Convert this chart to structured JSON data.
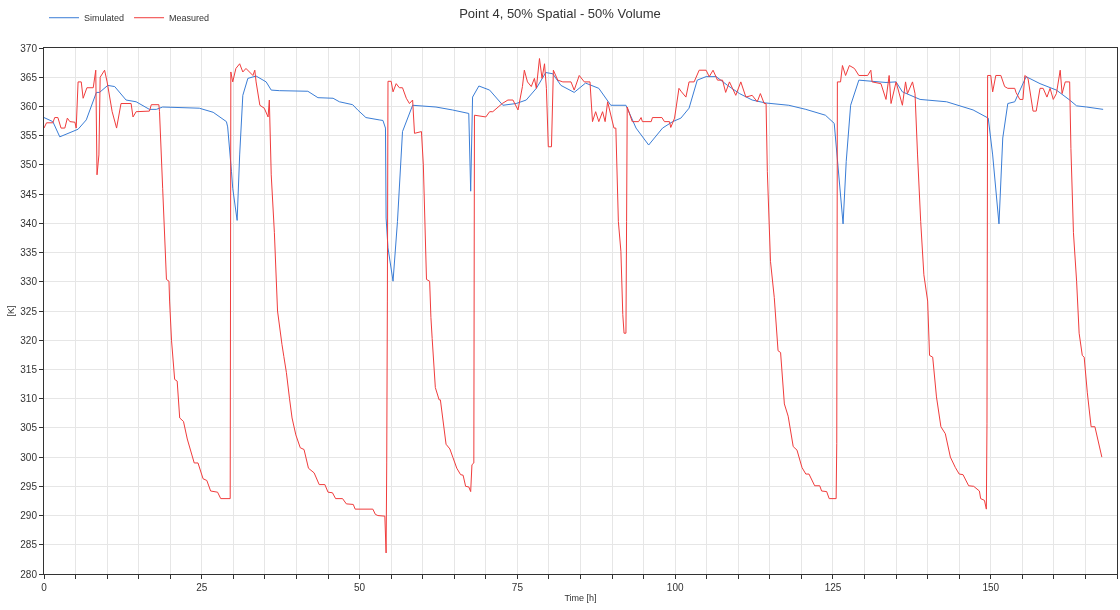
{
  "chart_data": {
    "type": "line",
    "title": "Point 4, 50% Spatial - 50% Volume",
    "xlabel": "Time [h]",
    "ylabel": "[K]",
    "xlim": [
      0,
      170
    ],
    "ylim": [
      280,
      370
    ],
    "xticks": [
      0,
      {
        "value": 5,
        "label": null
      },
      {
        "value": 10,
        "label": null
      },
      {
        "value": 15,
        "label": null
      },
      {
        "value": 20,
        "label": null
      },
      25,
      {
        "value": 30,
        "label": null
      },
      {
        "value": 35,
        "label": null
      },
      {
        "value": 40,
        "label": null
      },
      {
        "value": 45,
        "label": null
      },
      50,
      {
        "value": 55,
        "label": null
      },
      {
        "value": 60,
        "label": null
      },
      {
        "value": 65,
        "label": null
      },
      {
        "value": 70,
        "label": null
      },
      75,
      {
        "value": 80,
        "label": null
      },
      {
        "value": 85,
        "label": null
      },
      {
        "value": 90,
        "label": null
      },
      {
        "value": 95,
        "label": null
      },
      100,
      {
        "value": 105,
        "label": null
      },
      {
        "value": 110,
        "label": null
      },
      {
        "value": 115,
        "label": null
      },
      {
        "value": 120,
        "label": null
      },
      125,
      {
        "value": 130,
        "label": null
      },
      {
        "value": 135,
        "label": null
      },
      {
        "value": 140,
        "label": null
      },
      {
        "value": 145,
        "label": null
      },
      150,
      {
        "value": 155,
        "label": null
      },
      {
        "value": 160,
        "label": null
      },
      {
        "value": 165,
        "label": null
      },
      {
        "value": 170,
        "label": null
      }
    ],
    "yticks": [
      280,
      285,
      290,
      295,
      300,
      305,
      310,
      315,
      320,
      325,
      330,
      335,
      340,
      345,
      350,
      355,
      360,
      365,
      370
    ],
    "grid": true,
    "legend": "top left",
    "marker": "none",
    "line_style": "solid",
    "series": [
      {
        "name": "Simulated",
        "color": "#3a7dd6",
        "x": [
          0,
          1.4,
          2.5,
          5.4,
          6.7,
          8.3,
          8.8,
          10.1,
          11.2,
          13.0,
          14.6,
          16.7,
          17.8,
          18.8,
          24.6,
          26.8,
          28.9,
          29.1,
          29.7,
          29.9,
          30.6,
          31.0,
          31.5,
          32.3,
          33.6,
          35.2,
          36.0,
          37.3,
          41.8,
          43.4,
          45.8,
          46.8,
          48.9,
          49.7,
          51.0,
          53.1,
          53.7,
          54.1,
          54.2,
          54.5,
          55.3,
          56.0,
          56.8,
          58.4,
          62.1,
          64.7,
          67.3,
          67.6,
          67.9,
          68.9,
          70.6,
          72.7,
          74.8,
          76.4,
          78.0,
          79.5,
          80.6,
          81.9,
          84.0,
          85.8,
          87.9,
          89.8,
          92.2,
          93.8,
          95.8,
          98.0,
          99.6,
          100.9,
          102.2,
          103.5,
          104.9,
          106.5,
          108.3,
          110.2,
          112.2,
          114.3,
          118.0,
          120.7,
          123.8,
          125.2,
          126.6,
          127.1,
          127.8,
          129.1,
          131.2,
          133.4,
          135.0,
          136.0,
          138.8,
          143.0,
          147.2,
          149.6,
          150.3,
          151.3,
          151.9,
          152.7,
          153.8,
          155.6,
          157.8,
          160.4,
          162.5,
          163.6,
          165.2,
          167.8
        ],
        "values": [
          358.1,
          357.4,
          354.8,
          356.1,
          357.7,
          362.4,
          362.4,
          363.6,
          363.4,
          361.1,
          360.8,
          359.5,
          359.5,
          359.9,
          359.7,
          359.0,
          357.4,
          356.5,
          348.9,
          346,
          340.5,
          351.7,
          361.9,
          364.8,
          365.2,
          364.2,
          362.8,
          362.7,
          362.6,
          361.5,
          361.4,
          360.8,
          360.3,
          359.4,
          358.1,
          357.7,
          357.6,
          356.3,
          340.9,
          335.8,
          330.1,
          340.3,
          355.7,
          360.2,
          359.9,
          359.4,
          358.8,
          345.5,
          361.6,
          363.5,
          362.8,
          360.2,
          360.5,
          361.1,
          363.1,
          365.8,
          365.6,
          363.6,
          362.4,
          364.0,
          363.1,
          360.2,
          360.2,
          356.3,
          353.4,
          356.3,
          357.4,
          358.0,
          359.7,
          364.5,
          365.1,
          365.1,
          363.6,
          362.2,
          361.1,
          360.6,
          360.2,
          359.5,
          358.5,
          357.1,
          339.9,
          350.6,
          360.2,
          364.5,
          364.3,
          364.1,
          364.2,
          362.5,
          361.2,
          360.8,
          359.4,
          358.0,
          351.7,
          339.9,
          354.6,
          360.5,
          360.8,
          365.1,
          363.9,
          362.8,
          361.1,
          360.1,
          359.9,
          359.5
        ]
      },
      {
        "name": "Measured",
        "color": "#f03c3c",
        "x": [
          0,
          0.4,
          1.4,
          1.7,
          2.2,
          2.7,
          3.3,
          3.7,
          4.1,
          4.9,
          5.1,
          5.4,
          5.9,
          6.2,
          6.8,
          7.8,
          8.2,
          8.4,
          8.7,
          8.9,
          9.6,
          10.0,
          10.8,
          11.5,
          12.2,
          13.8,
          14.1,
          14.6,
          16.7,
          17.0,
          18.2,
          18.3,
          18.8,
          19.4,
          19.8,
          19.9,
          20.2,
          20.7,
          21.1,
          21.5,
          22.1,
          22.7,
          23.8,
          24.4,
          25.2,
          25.8,
          26.4,
          27.5,
          28.0,
          29.5,
          29.6,
          29.9,
          30.4,
          31.0,
          31.5,
          32.0,
          33.1,
          33.4,
          33.6,
          34.2,
          34.9,
          35.5,
          35.7,
          36.0,
          36.5,
          37.0,
          37.7,
          38.0,
          38.4,
          38.9,
          39.3,
          39.9,
          40.6,
          41.2,
          41.9,
          42.8,
          43.6,
          44.5,
          45.0,
          45.7,
          46.2,
          47.3,
          47.9,
          49.0,
          49.3,
          52.1,
          52.5,
          52.9,
          54.0,
          54.2,
          54.3,
          54.4,
          54.5,
          55.0,
          55.3,
          55.8,
          56.3,
          56.8,
          57.4,
          57.9,
          58.4,
          58.7,
          59.8,
          60.1,
          60.6,
          61.1,
          61.3,
          61.5,
          62.0,
          62.6,
          62.8,
          63.7,
          64.3,
          64.8,
          65.4,
          66.0,
          66.4,
          66.8,
          67.3,
          67.6,
          67.8,
          68.1,
          68.2,
          70.0,
          70.6,
          71.1,
          72.6,
          73.5,
          74.3,
          75.1,
          75.8,
          76.1,
          76.6,
          77.2,
          77.7,
          78.0,
          78.5,
          78.9,
          79.3,
          79.6,
          79.9,
          80.4,
          80.7,
          81.4,
          82.2,
          83.5,
          84.0,
          84.8,
          85.6,
          86.5,
          86.9,
          87.4,
          87.9,
          88.5,
          88.9,
          89.3,
          90.3,
          90.6,
          91.0,
          91.4,
          91.7,
          91.9,
          92.2,
          92.3,
          92.4,
          93.2,
          94.2,
          94.6,
          94.8,
          96.2,
          96.4,
          97.9,
          98.3,
          99.1,
          99.3,
          99.9,
          100.6,
          101.0,
          101.7,
          102.2,
          103.0,
          103.8,
          104.9,
          105.4,
          106.0,
          106.7,
          107.5,
          108.0,
          108.6,
          109.6,
          110.4,
          111.2,
          112.2,
          113.0,
          113.5,
          114.1,
          114.4,
          114.6,
          115.1,
          115.7,
          116.3,
          116.7,
          117.3,
          117.9,
          118.7,
          119.3,
          120.1,
          120.7,
          121.2,
          122.1,
          122.9,
          123.2,
          124.0,
          124.4,
          125.5,
          125.6,
          125.7,
          126.2,
          126.5,
          127.0,
          127.6,
          128.4,
          129.1,
          130.5,
          131.0,
          131.2,
          132.6,
          133.4,
          133.9,
          134.2,
          135.0,
          136.0,
          136.5,
          136.8,
          137.6,
          138.0,
          138.4,
          138.9,
          139.4,
          140.0,
          140.3,
          140.8,
          141.4,
          142.1,
          142.8,
          143.6,
          144.4,
          145.0,
          145.6,
          146.5,
          147.3,
          148.2,
          148.4,
          149.0,
          149.3,
          149.4,
          149.5,
          150.0,
          150.3,
          150.8,
          151.6,
          152.2,
          152.7,
          153.8,
          154.0,
          154.6,
          155.1,
          155.4,
          155.9,
          156.7,
          157.2,
          157.8,
          158.3,
          158.9,
          159.4,
          159.9,
          160.4,
          161.0,
          161.3,
          161.8,
          162.5,
          162.7,
          163.1,
          163.6,
          164.0,
          164.5,
          164.8,
          165.3,
          165.9,
          166.5,
          167.6
        ],
        "values": [
          356.3,
          357.2,
          357.2,
          358.1,
          358.1,
          356.3,
          356.3,
          358.0,
          357.4,
          357.3,
          356.3,
          364.2,
          364.2,
          361.4,
          363.2,
          363.2,
          366.2,
          348.3,
          351.7,
          365.0,
          366.2,
          364.2,
          359.1,
          356.3,
          360.5,
          360.5,
          358.2,
          359.1,
          359.2,
          360.3,
          360.3,
          359.1,
          346.0,
          330.4,
          330.1,
          326.7,
          320.0,
          313.3,
          313.0,
          306.7,
          306.1,
          303.1,
          299.0,
          299.0,
          296.3,
          296.0,
          294.2,
          294.0,
          292.9,
          292.9,
          365.9,
          364.2,
          366.5,
          367.3,
          365.9,
          366.5,
          365.3,
          366.2,
          364.2,
          360.2,
          359.7,
          358.2,
          361.1,
          348.3,
          338.4,
          325.0,
          319.3,
          317.2,
          314.5,
          310.0,
          306.7,
          303.8,
          301.6,
          301.3,
          298.1,
          297.3,
          295.3,
          295.3,
          294.0,
          293.9,
          292.9,
          292.9,
          292.0,
          291.9,
          291.1,
          291.1,
          290.2,
          290.0,
          289.9,
          283.6,
          299.0,
          326.7,
          364.3,
          364.3,
          362.5,
          363.9,
          363.2,
          363.2,
          361.4,
          360.5,
          361.1,
          355.4,
          355.7,
          350.0,
          330.4,
          330.1,
          323.9,
          320.3,
          311.9,
          309.8,
          309.8,
          302.2,
          301.4,
          299.9,
          298.1,
          297.0,
          296.9,
          295.0,
          294.9,
          294.1,
          298.7,
          299.0,
          358.5,
          358.2,
          359.1,
          359.1,
          360.5,
          361.1,
          361.1,
          359.4,
          363.4,
          366.2,
          364.2,
          363.4,
          364.8,
          363.1,
          368.2,
          364.8,
          367.3,
          363.1,
          353.1,
          353.1,
          366.2,
          364.5,
          364.2,
          364.2,
          362.8,
          365.3,
          364.2,
          364.2,
          357.4,
          359.1,
          357.4,
          359.1,
          357.4,
          360.8,
          356.3,
          356.3,
          340.3,
          335.2,
          324.4,
          321.2,
          321.2,
          340.3,
          359.9,
          357.4,
          357.4,
          358.1,
          357.4,
          357.4,
          358.1,
          358.1,
          357.4,
          357.4,
          356.4,
          358.0,
          363.1,
          362.5,
          361.6,
          364.2,
          364.2,
          366.2,
          366.2,
          365.1,
          366.2,
          364.5,
          364.5,
          362.4,
          364.2,
          361.9,
          364.2,
          361.6,
          361.9,
          360.8,
          362.2,
          360.5,
          360.5,
          348.9,
          333.5,
          327.3,
          318.2,
          317.9,
          309.1,
          307.0,
          301.8,
          301.2,
          298.2,
          297.1,
          297.1,
          295.1,
          295.1,
          294.2,
          294.1,
          292.9,
          292.9,
          302.3,
          364.2,
          364.2,
          367.0,
          365.3,
          367.0,
          366.5,
          365.3,
          365.3,
          366.2,
          364.2,
          363.9,
          361.2,
          365.3,
          360.5,
          364.2,
          360.2,
          364.2,
          362.2,
          364.2,
          362.2,
          351.7,
          340.3,
          331.2,
          326.7,
          317.4,
          317.1,
          310.3,
          305.2,
          304.0,
          300.0,
          298.2,
          297.1,
          297.0,
          295.1,
          295.0,
          294.2,
          292.9,
          292.6,
          291.1,
          305.7,
          365.3,
          365.3,
          362.5,
          365.3,
          365.3,
          363.4,
          363.1,
          363.1,
          362.4,
          361.2,
          361.2,
          365.3,
          364.8,
          359.2,
          359.2,
          363.1,
          363.1,
          361.6,
          363.1,
          361.2,
          362.2,
          366.2,
          362.2,
          364.2,
          364.2,
          352.8,
          338.4,
          330.1,
          321.2,
          317.4,
          317.1,
          311.0,
          305.2,
          305.2,
          300.0
        ]
      }
    ]
  }
}
